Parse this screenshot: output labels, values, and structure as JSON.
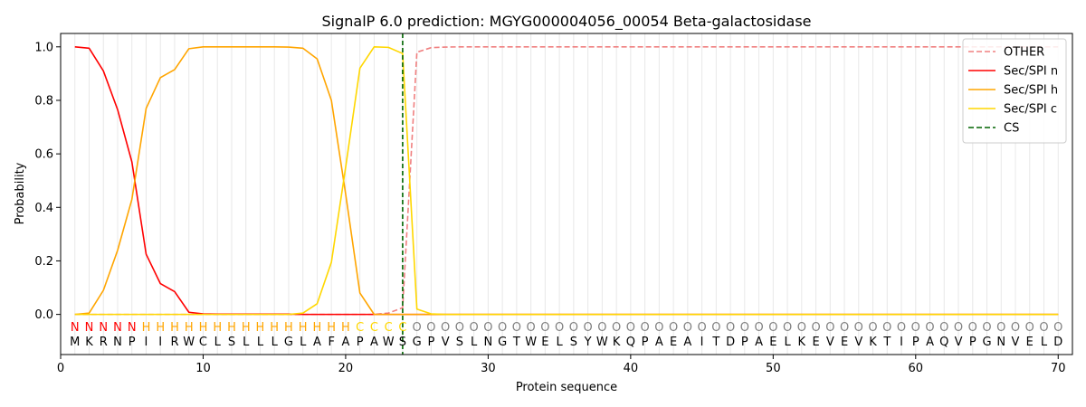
{
  "chart_data": {
    "type": "line",
    "title": "SignalP 6.0 prediction: MGYG000004056_00054 Beta-galactosidase",
    "xlabel": "Protein sequence",
    "ylabel": "Probability",
    "xlim": [
      0,
      71
    ],
    "ylim": [
      -0.15,
      1.05
    ],
    "x_ticks": [
      0,
      10,
      20,
      30,
      40,
      50,
      60,
      70
    ],
    "y_ticks": [
      0.0,
      0.2,
      0.4,
      0.6,
      0.8,
      1.0
    ],
    "legend_position": "top-right",
    "sequence": [
      "M",
      "K",
      "R",
      "N",
      "P",
      "I",
      "I",
      "R",
      "W",
      "C",
      "L",
      "S",
      "L",
      "L",
      "L",
      "G",
      "L",
      "A",
      "F",
      "A",
      "P",
      "A",
      "W",
      "S",
      "G",
      "P",
      "V",
      "S",
      "L",
      "N",
      "G",
      "T",
      "W",
      "E",
      "L",
      "S",
      "Y",
      "W",
      "K",
      "Q",
      "P",
      "A",
      "E",
      "A",
      "I",
      "T",
      "D",
      "P",
      "A",
      "E",
      "L",
      "K",
      "E",
      "V",
      "E",
      "V",
      "K",
      "T",
      "I",
      "P",
      "A",
      "Q",
      "V",
      "P",
      "G",
      "N",
      "V",
      "E",
      "L",
      "D"
    ],
    "region_labels": [
      "N",
      "N",
      "N",
      "N",
      "N",
      "H",
      "H",
      "H",
      "H",
      "H",
      "H",
      "H",
      "H",
      "H",
      "H",
      "H",
      "H",
      "H",
      "H",
      "H",
      "C",
      "C",
      "C",
      "C",
      "O",
      "O",
      "O",
      "O",
      "O",
      "O",
      "O",
      "O",
      "O",
      "O",
      "O",
      "O",
      "O",
      "O",
      "O",
      "O",
      "O",
      "O",
      "O",
      "O",
      "O",
      "O",
      "O",
      "O",
      "O",
      "O",
      "O",
      "O",
      "O",
      "O",
      "O",
      "O",
      "O",
      "O",
      "O",
      "O",
      "O",
      "O",
      "O",
      "O",
      "O",
      "O",
      "O",
      "O",
      "O",
      "O"
    ],
    "region_colors": {
      "N": "#ff0000",
      "H": "#ffa500",
      "C": "#ffd700",
      "O": "#808080"
    },
    "cleavage_site": 24,
    "series": [
      {
        "name": "OTHER",
        "color": "#f08080",
        "style": "dashed",
        "values": [
          0.0,
          0.0,
          0.0,
          0.0,
          0.0,
          0.0,
          0.0,
          0.0,
          0.0,
          0.0,
          0.0,
          0.0,
          0.0,
          0.0,
          0.0,
          0.0,
          0.0,
          0.0,
          0.0,
          0.0,
          0.0,
          0.0,
          0.005,
          0.025,
          0.98,
          0.997,
          0.999,
          1.0,
          1.0,
          1.0,
          1.0,
          1.0,
          1.0,
          1.0,
          1.0,
          1.0,
          1.0,
          1.0,
          1.0,
          1.0,
          1.0,
          1.0,
          1.0,
          1.0,
          1.0,
          1.0,
          1.0,
          1.0,
          1.0,
          1.0,
          1.0,
          1.0,
          1.0,
          1.0,
          1.0,
          1.0,
          1.0,
          1.0,
          1.0,
          1.0,
          1.0,
          1.0,
          1.0,
          1.0,
          1.0,
          1.0,
          1.0,
          1.0,
          1.0,
          1.0
        ]
      },
      {
        "name": "Sec/SPI n",
        "color": "#ff0000",
        "style": "solid",
        "values": [
          1.0,
          0.995,
          0.91,
          0.765,
          0.57,
          0.225,
          0.115,
          0.085,
          0.008,
          0.002,
          0.001,
          0.001,
          0.001,
          0.001,
          0.001,
          0.001,
          0.0,
          0.0,
          0.0,
          0.0,
          0.0,
          0.0,
          0.0,
          0.0,
          0.0,
          0.0,
          0.0,
          0.0,
          0.0,
          0.0,
          0.0,
          0.0,
          0.0,
          0.0,
          0.0,
          0.0,
          0.0,
          0.0,
          0.0,
          0.0,
          0.0,
          0.0,
          0.0,
          0.0,
          0.0,
          0.0,
          0.0,
          0.0,
          0.0,
          0.0,
          0.0,
          0.0,
          0.0,
          0.0,
          0.0,
          0.0,
          0.0,
          0.0,
          0.0,
          0.0,
          0.0,
          0.0,
          0.0,
          0.0,
          0.0,
          0.0,
          0.0,
          0.0,
          0.0,
          0.0
        ]
      },
      {
        "name": "Sec/SPI h",
        "color": "#ffa500",
        "style": "solid",
        "values": [
          0.0,
          0.005,
          0.09,
          0.24,
          0.43,
          0.77,
          0.885,
          0.915,
          0.993,
          1.0,
          1.0,
          1.0,
          1.0,
          1.0,
          1.0,
          0.999,
          0.995,
          0.955,
          0.8,
          0.45,
          0.08,
          0.0,
          0.0,
          0.0,
          0.0,
          0.0,
          0.0,
          0.0,
          0.0,
          0.0,
          0.0,
          0.0,
          0.0,
          0.0,
          0.0,
          0.0,
          0.0,
          0.0,
          0.0,
          0.0,
          0.0,
          0.0,
          0.0,
          0.0,
          0.0,
          0.0,
          0.0,
          0.0,
          0.0,
          0.0,
          0.0,
          0.0,
          0.0,
          0.0,
          0.0,
          0.0,
          0.0,
          0.0,
          0.0,
          0.0,
          0.0,
          0.0,
          0.0,
          0.0,
          0.0,
          0.0,
          0.0,
          0.0,
          0.0,
          0.0
        ]
      },
      {
        "name": "Sec/SPI c",
        "color": "#ffd700",
        "style": "solid",
        "values": [
          0.0,
          0.0,
          0.0,
          0.0,
          0.0,
          0.0,
          0.0,
          0.0,
          0.0,
          0.0,
          0.0,
          0.0,
          0.0,
          0.0,
          0.0,
          0.0,
          0.005,
          0.04,
          0.195,
          0.55,
          0.92,
          1.0,
          0.998,
          0.975,
          0.02,
          0.002,
          0.0,
          0.0,
          0.0,
          0.0,
          0.0,
          0.0,
          0.0,
          0.0,
          0.0,
          0.0,
          0.0,
          0.0,
          0.0,
          0.0,
          0.0,
          0.0,
          0.0,
          0.0,
          0.0,
          0.0,
          0.0,
          0.0,
          0.0,
          0.0,
          0.0,
          0.0,
          0.0,
          0.0,
          0.0,
          0.0,
          0.0,
          0.0,
          0.0,
          0.0,
          0.0,
          0.0,
          0.0,
          0.0,
          0.0,
          0.0,
          0.0,
          0.0,
          0.0,
          0.0
        ]
      },
      {
        "name": "CS",
        "color": "#006400",
        "style": "dashed",
        "values": []
      }
    ]
  }
}
